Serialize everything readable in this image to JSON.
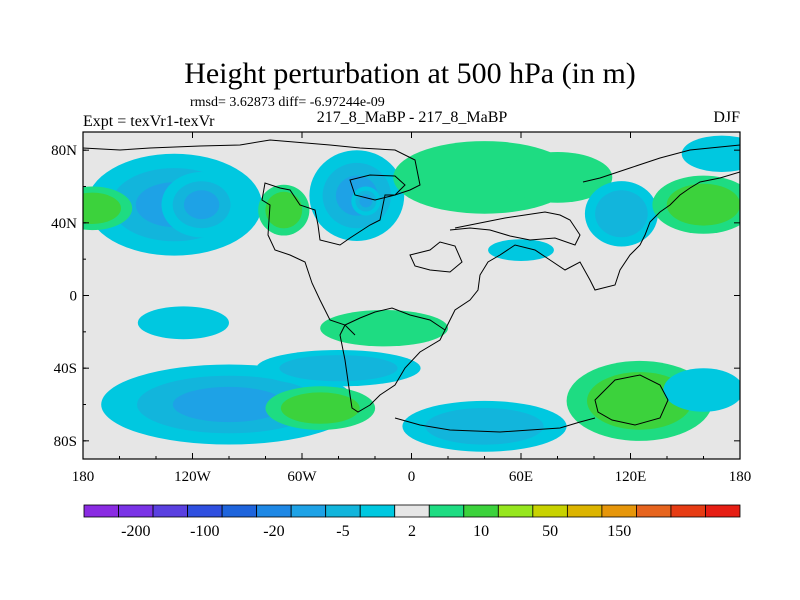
{
  "chart_data": {
    "type": "heatmap",
    "title": "Height perturbation at 500 hPa (in m)",
    "stats_line": "rmsd= 3.62873 diff= -6.97244e-09",
    "left_header": "Expt = texVr1-texVr",
    "center_header": "217_8_MaBP - 217_8_MaBP",
    "right_header": "DJF",
    "lon_range": [
      -180,
      180
    ],
    "lat_range": [
      -90,
      90
    ],
    "x_ticks": [
      {
        "value": -180,
        "label": "180"
      },
      {
        "value": -120,
        "label": "120W"
      },
      {
        "value": -60,
        "label": "60W"
      },
      {
        "value": 0,
        "label": "0"
      },
      {
        "value": 60,
        "label": "60E"
      },
      {
        "value": 120,
        "label": "120E"
      },
      {
        "value": 180,
        "label": "180"
      }
    ],
    "y_ticks": [
      {
        "value": 80,
        "label": "80N"
      },
      {
        "value": 40,
        "label": "40N"
      },
      {
        "value": 0,
        "label": "0"
      },
      {
        "value": -40,
        "label": "40S"
      },
      {
        "value": -80,
        "label": "80S"
      }
    ],
    "colorbar": {
      "colors": [
        "#8a2be2",
        "#7a33e6",
        "#5a40e0",
        "#2f4fe0",
        "#1e64dc",
        "#1e88e5",
        "#1ea2e6",
        "#12b5dc",
        "#00c8e0",
        "#e6e6e6",
        "#1edc82",
        "#3cd23c",
        "#96e61e",
        "#c8d200",
        "#dcb400",
        "#e6960a",
        "#e6641e",
        "#e63c14",
        "#e61e14"
      ],
      "labeled_boundaries": [
        {
          "index": 1,
          "label": "-200"
        },
        {
          "index": 3,
          "label": "-100"
        },
        {
          "index": 5,
          "label": "-20"
        },
        {
          "index": 7,
          "label": "-5"
        },
        {
          "index": 9,
          "label": "2"
        },
        {
          "index": 11,
          "label": "10"
        },
        {
          "index": 13,
          "label": "50"
        },
        {
          "index": 15,
          "label": "150"
        }
      ]
    },
    "anomalies": [
      {
        "lon": -130,
        "lat": 50,
        "value": -15,
        "rlon": 48,
        "rlat": 28
      },
      {
        "lon": -115,
        "lat": 50,
        "value": -12,
        "rlon": 22,
        "rlat": 18
      },
      {
        "lon": -30,
        "lat": 55,
        "value": -12,
        "rlon": 26,
        "rlat": 25
      },
      {
        "lon": -25,
        "lat": 52,
        "value": -18,
        "rlon": 8,
        "rlat": 8
      },
      {
        "lon": -175,
        "lat": 48,
        "value": 10,
        "rlon": 22,
        "rlat": 12
      },
      {
        "lon": -70,
        "lat": 47,
        "value": 10,
        "rlon": 14,
        "rlat": 14
      },
      {
        "lon": 40,
        "lat": 65,
        "value": 4,
        "rlon": 50,
        "rlat": 20
      },
      {
        "lon": 80,
        "lat": 65,
        "value": 3,
        "rlon": 30,
        "rlat": 14
      },
      {
        "lon": 115,
        "lat": 45,
        "value": -8,
        "rlon": 20,
        "rlat": 18
      },
      {
        "lon": 160,
        "lat": 50,
        "value": 10,
        "rlon": 28,
        "rlat": 16
      },
      {
        "lon": 170,
        "lat": 78,
        "value": -4,
        "rlon": 22,
        "rlat": 10
      },
      {
        "lon": 60,
        "lat": 25,
        "value": -4,
        "rlon": 18,
        "rlat": 6
      },
      {
        "lon": -125,
        "lat": -15,
        "value": -3,
        "rlon": 25,
        "rlat": 9
      },
      {
        "lon": -15,
        "lat": -18,
        "value": 4,
        "rlon": 35,
        "rlat": 10
      },
      {
        "lon": -100,
        "lat": -60,
        "value": -12,
        "rlon": 70,
        "rlat": 22
      },
      {
        "lon": -40,
        "lat": -40,
        "value": -6,
        "rlon": 45,
        "rlat": 10
      },
      {
        "lon": -50,
        "lat": -62,
        "value": 6,
        "rlon": 30,
        "rlat": 12
      },
      {
        "lon": 40,
        "lat": -72,
        "value": -8,
        "rlon": 45,
        "rlat": 14
      },
      {
        "lon": 125,
        "lat": -58,
        "value": 7,
        "rlon": 40,
        "rlat": 22
      },
      {
        "lon": 160,
        "lat": -52,
        "value": -4,
        "rlon": 22,
        "rlat": 12
      }
    ]
  }
}
